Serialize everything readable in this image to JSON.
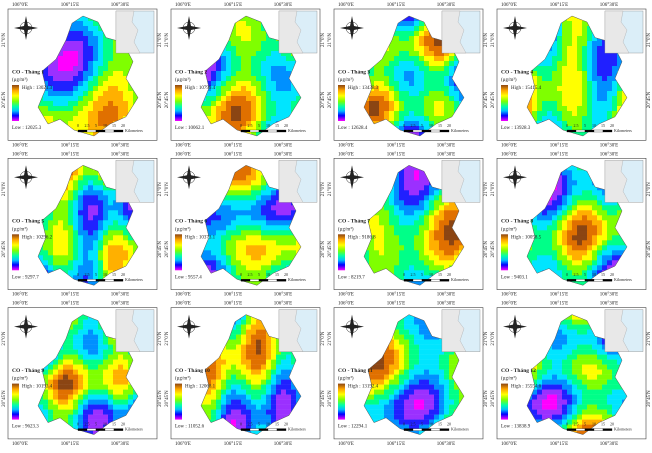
{
  "panels": [
    {
      "title": "CO - Tháng 1",
      "unit": "(µg/m³)",
      "high": "High : 13021.3",
      "low": "Low : 12025.3"
    },
    {
      "title": "CO - Tháng 2",
      "unit": "(µg/m³)",
      "high": "High : 10799.4",
      "low": "Low : 10062.1"
    },
    {
      "title": "CO - Tháng 3",
      "unit": "(µg/m³)",
      "high": "High : 13438.3",
      "low": "Low : 12628.4"
    },
    {
      "title": "CO - Tháng 4",
      "unit": "(µg/m³)",
      "high": "High : 15415.4",
      "low": "Low : 13928.3"
    },
    {
      "title": "CO - Tháng 5",
      "unit": "(µg/m³)",
      "high": "High : 10296.2",
      "low": "Low : 9297.7"
    },
    {
      "title": "CO - Tháng 6",
      "unit": "(µg/m³)",
      "high": "High : 10373.1",
      "low": "Low : 9557.4"
    },
    {
      "title": "CO - Tháng 7",
      "unit": "(µg/m³)",
      "high": "High : 9186.8",
      "low": "Low : 8219.7"
    },
    {
      "title": "CO - Tháng 8",
      "unit": "(µg/m³)",
      "high": "High : 10058.5",
      "low": "Low : 9403.1"
    },
    {
      "title": "CO - Tháng 9",
      "unit": "(µg/m³)",
      "high": "High : 10193.4",
      "low": "Low : 9623.3"
    },
    {
      "title": "CO - Tháng 10",
      "unit": "(µg/m³)",
      "high": "High : 12068.1",
      "low": "Low : 11052.6"
    },
    {
      "title": "CO - Tháng 11",
      "unit": "(µg/m³)",
      "high": "High : 13192.4",
      "low": "Low : 12294.1"
    },
    {
      "title": "CO - Tháng 12",
      "unit": "(µg/m³)",
      "high": "High : 15554.6",
      "low": "Low : 13838.9"
    }
  ],
  "coordinates": {
    "lon": [
      "106°0'E",
      "106°15'E",
      "106°30'E"
    ],
    "lat": [
      "21°0'N",
      "20°45'N"
    ]
  },
  "scale": {
    "labels": [
      "0",
      "2.5",
      "5",
      "10",
      "15",
      "20"
    ],
    "unit": "Kilometers"
  }
}
